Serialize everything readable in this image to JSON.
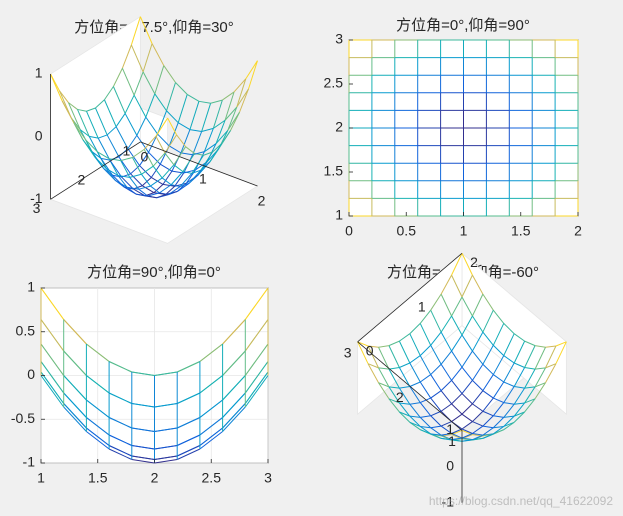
{
  "chart_data": [
    {
      "type": "mesh-3d",
      "title": "方位角=-37.5°,仰角=30°",
      "view": {
        "azimuth": -37.5,
        "elevation": 30
      },
      "function": "z = (x-1)^2 + (y-2)^2 - 1",
      "x_grid": [
        0,
        0.2,
        0.4,
        0.6,
        0.8,
        1,
        1.2,
        1.4,
        1.6,
        1.8,
        2
      ],
      "y_grid": [
        1,
        1.2,
        1.4,
        1.6,
        1.8,
        2,
        2.2,
        2.4,
        2.6,
        2.8,
        3
      ],
      "xlim": [
        0,
        2
      ],
      "ylim": [
        1,
        3
      ],
      "zlim": [
        -1,
        1
      ],
      "xticks": [
        "0",
        "1",
        "2"
      ],
      "yticks": [
        "1",
        "2",
        "3"
      ],
      "zticks": [
        "-1",
        "0",
        "1"
      ],
      "colormap": "parula"
    },
    {
      "type": "mesh-3d",
      "title": "方位角=0°,仰角=90°",
      "view": {
        "azimuth": 0,
        "elevation": 90
      },
      "function": "z = (x-1)^2 + (y-2)^2 - 1",
      "x_grid": [
        0,
        0.2,
        0.4,
        0.6,
        0.8,
        1,
        1.2,
        1.4,
        1.6,
        1.8,
        2
      ],
      "y_grid": [
        1,
        1.2,
        1.4,
        1.6,
        1.8,
        2,
        2.2,
        2.4,
        2.6,
        2.8,
        3
      ],
      "xlim": [
        0,
        2
      ],
      "ylim": [
        1,
        3
      ],
      "xticks": [
        "0",
        "0.5",
        "1",
        "1.5",
        "2"
      ],
      "yticks": [
        "1",
        "1.5",
        "2",
        "2.5",
        "3"
      ],
      "colormap": "parula"
    },
    {
      "type": "mesh-3d",
      "title": "方位角=90°,仰角=0°",
      "view": {
        "azimuth": 90,
        "elevation": 0
      },
      "function": "z = (x-1)^2 + (y-2)^2 - 1",
      "x_grid": [
        0,
        0.2,
        0.4,
        0.6,
        0.8,
        1,
        1.2,
        1.4,
        1.6,
        1.8,
        2
      ],
      "y_grid": [
        1,
        1.2,
        1.4,
        1.6,
        1.8,
        2,
        2.2,
        2.4,
        2.6,
        2.8,
        3
      ],
      "xlim": [
        1,
        3
      ],
      "ylim": [
        -1,
        1
      ],
      "xticks": [
        "1",
        "1.5",
        "2",
        "2.5",
        "3"
      ],
      "yticks": [
        "-1",
        "-0.5",
        "0",
        "0.5",
        "1"
      ],
      "colormap": "parula"
    },
    {
      "type": "mesh-3d",
      "title": "方位角=-45°,仰角=-60°",
      "view": {
        "azimuth": -45,
        "elevation": -60
      },
      "function": "z = (x-1)^2 + (y-2)^2 - 1",
      "x_grid": [
        0,
        0.2,
        0.4,
        0.6,
        0.8,
        1,
        1.2,
        1.4,
        1.6,
        1.8,
        2
      ],
      "y_grid": [
        1,
        1.2,
        1.4,
        1.6,
        1.8,
        2,
        2.2,
        2.4,
        2.6,
        2.8,
        3
      ],
      "xlim": [
        0,
        2
      ],
      "ylim": [
        1,
        3
      ],
      "zlim": [
        -1,
        1
      ],
      "xticks": [
        "0",
        "1",
        "2"
      ],
      "yticks": [
        "1",
        "2",
        "3"
      ],
      "zticks": [
        "-1",
        "0",
        "1"
      ],
      "colormap": "parula"
    }
  ],
  "watermark": "https://blog.csdn.net/qq_41622092",
  "colors": {
    "background": "#f0f0f0",
    "axes_background": "#ffffff",
    "axis_line": "#262626",
    "grid": "#e6e6e6"
  }
}
